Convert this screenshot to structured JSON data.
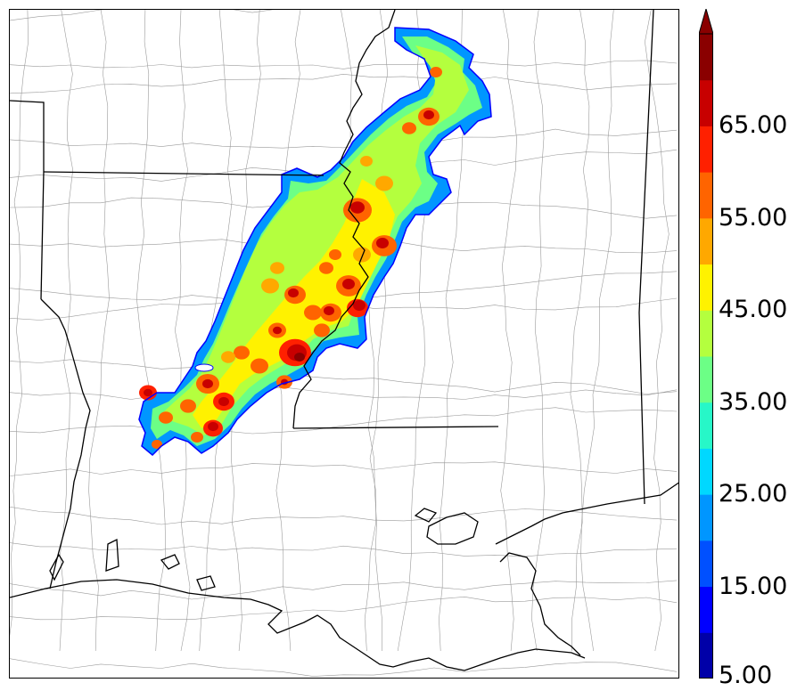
{
  "colorbar": {
    "labels": [
      "5.00",
      "15.00",
      "25.00",
      "35.00",
      "45.00",
      "55.00",
      "65.00"
    ],
    "levels": [
      5,
      10,
      15,
      20,
      25,
      30,
      35,
      40,
      45,
      50,
      55,
      60,
      65,
      70
    ],
    "colors": [
      "#0000a8",
      "#0000ff",
      "#0050ff",
      "#0096ff",
      "#00d8ff",
      "#27f7c8",
      "#6cff86",
      "#b4ff3e",
      "#fff200",
      "#ffa800",
      "#ff6400",
      "#ff2000",
      "#c80000",
      "#8a0000"
    ],
    "extend": "max"
  },
  "map": {
    "land_color": "#ffffff",
    "border_color": "#000000",
    "county_color": "#9a9a9a"
  }
}
